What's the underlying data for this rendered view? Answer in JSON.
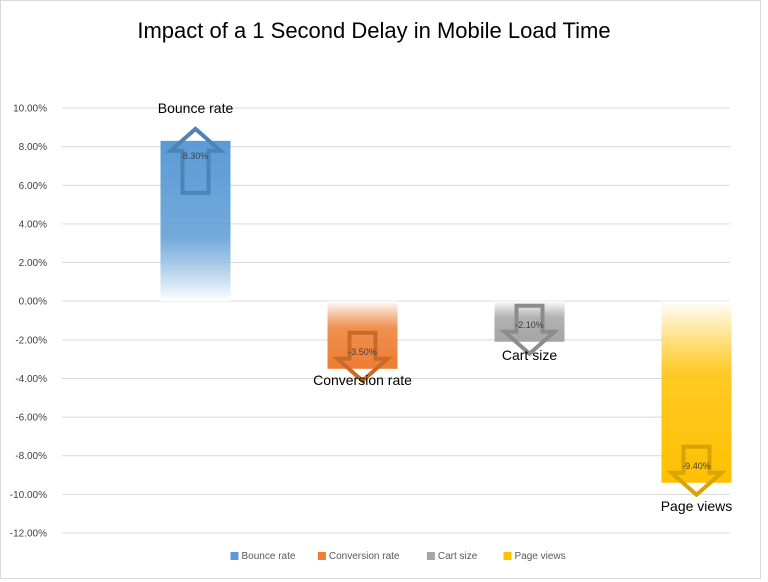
{
  "chart_data": {
    "type": "bar",
    "title": "Impact of a 1 Second Delay in Mobile Load Time",
    "categories": [
      "Bounce rate",
      "Conversion rate",
      "Cart size",
      "Page views"
    ],
    "values": [
      8.3,
      -3.5,
      -2.1,
      -9.4
    ],
    "value_labels": [
      "8.30%",
      "-3.50%",
      "-2.10%",
      "-9.40%"
    ],
    "colors": [
      "#5b9bd5",
      "#ed7d31",
      "#a5a5a5",
      "#ffc000"
    ],
    "arrow_direction": [
      "up",
      "down",
      "down",
      "down"
    ],
    "ylim": [
      -12,
      10
    ],
    "yticks": [
      10,
      8,
      6,
      4,
      2,
      0,
      -2,
      -4,
      -6,
      -8,
      -10,
      -12
    ],
    "ytick_labels": [
      "10.00%",
      "8.00%",
      "6.00%",
      "4.00%",
      "2.00%",
      "0.00%",
      "-2.00%",
      "-4.00%",
      "-6.00%",
      "-8.00%",
      "-10.00%",
      "-12.00%"
    ],
    "grid": true,
    "legend": {
      "position": "bottom",
      "entries": [
        "Bounce rate",
        "Conversion rate",
        "Cart size",
        "Page views"
      ]
    }
  }
}
